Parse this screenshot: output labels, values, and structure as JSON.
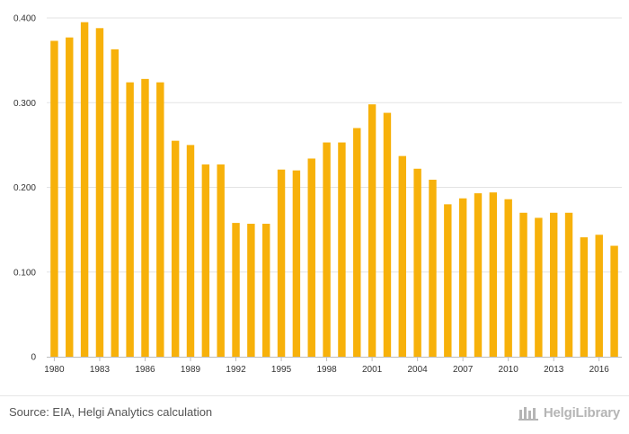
{
  "chart_data": {
    "type": "bar",
    "title": "",
    "xlabel": "",
    "ylabel": "",
    "ylim": [
      0,
      0.4
    ],
    "yticks": [
      0,
      0.1,
      0.2,
      0.3,
      0.4
    ],
    "ytick_labels": [
      "0",
      "0.100",
      "0.200",
      "0.300",
      "0.400"
    ],
    "grid": true,
    "bar_color": "#f7b10a",
    "categories": [
      1980,
      1981,
      1982,
      1983,
      1984,
      1985,
      1986,
      1987,
      1988,
      1989,
      1990,
      1991,
      1992,
      1993,
      1994,
      1995,
      1996,
      1997,
      1998,
      1999,
      2000,
      2001,
      2002,
      2003,
      2004,
      2005,
      2006,
      2007,
      2008,
      2009,
      2010,
      2011,
      2012,
      2013,
      2014,
      2015,
      2016,
      2017
    ],
    "values": [
      0.373,
      0.377,
      0.395,
      0.388,
      0.363,
      0.324,
      0.328,
      0.324,
      0.255,
      0.25,
      0.227,
      0.227,
      0.158,
      0.157,
      0.157,
      0.221,
      0.22,
      0.234,
      0.253,
      0.253,
      0.27,
      0.298,
      0.288,
      0.237,
      0.222,
      0.209,
      0.18,
      0.187,
      0.193,
      0.194,
      0.186,
      0.17,
      0.164,
      0.17,
      0.17,
      0.141,
      0.144,
      0.131
    ],
    "xtick_labels": [
      "1980",
      "1983",
      "1986",
      "1989",
      "1992",
      "1995",
      "1998",
      "2001",
      "2004",
      "2007",
      "2010",
      "2013",
      "2016"
    ]
  },
  "footer": {
    "source": "Source: EIA, Helgi Analytics calculation",
    "brand": "HelgiLibrary"
  }
}
